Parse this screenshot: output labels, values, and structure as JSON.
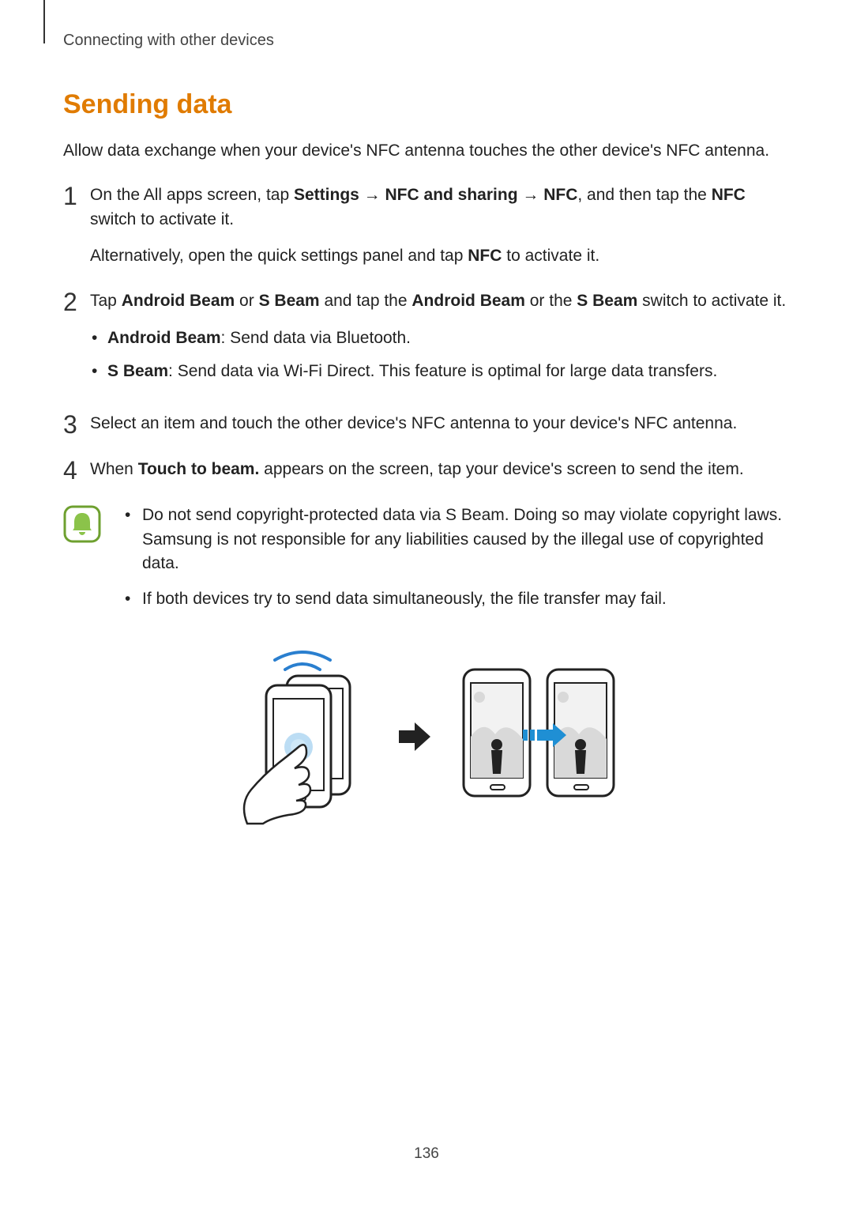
{
  "header": {
    "breadcrumb": "Connecting with other devices"
  },
  "section": {
    "title": "Sending data",
    "intro": "Allow data exchange when your device's NFC antenna touches the other device's NFC antenna."
  },
  "steps": [
    {
      "num": "1",
      "parts": [
        {
          "t": "On the All apps screen, tap "
        },
        {
          "t": "Settings",
          "b": true
        },
        {
          "t": " → "
        },
        {
          "t": "NFC and sharing",
          "b": true
        },
        {
          "t": " → "
        },
        {
          "t": "NFC",
          "b": true
        },
        {
          "t": ", and then tap the "
        },
        {
          "t": "NFC",
          "b": true
        },
        {
          "t": " switch to activate it."
        }
      ],
      "extra": [
        {
          "t": "Alternatively, open the quick settings panel and tap "
        },
        {
          "t": "NFC",
          "b": true
        },
        {
          "t": " to activate it."
        }
      ]
    },
    {
      "num": "2",
      "parts": [
        {
          "t": "Tap "
        },
        {
          "t": "Android Beam",
          "b": true
        },
        {
          "t": " or "
        },
        {
          "t": "S Beam",
          "b": true
        },
        {
          "t": " and tap the "
        },
        {
          "t": "Android Beam",
          "b": true
        },
        {
          "t": " or the "
        },
        {
          "t": "S Beam",
          "b": true
        },
        {
          "t": " switch to activate it."
        }
      ],
      "bullets": [
        [
          {
            "t": "Android Beam",
            "b": true
          },
          {
            "t": ": Send data via Bluetooth."
          }
        ],
        [
          {
            "t": "S Beam",
            "b": true
          },
          {
            "t": ": Send data via Wi-Fi Direct. This feature is optimal for large data transfers."
          }
        ]
      ]
    },
    {
      "num": "3",
      "parts": [
        {
          "t": "Select an item and touch the other device's NFC antenna to your device's NFC antenna."
        }
      ]
    },
    {
      "num": "4",
      "parts": [
        {
          "t": "When "
        },
        {
          "t": "Touch to beam.",
          "b": true
        },
        {
          "t": " appears on the screen, tap your device's screen to send the item."
        }
      ]
    }
  ],
  "notes": [
    "Do not send copyright-protected data via S Beam. Doing so may violate copyright laws. Samsung is not responsible for any liabilities caused by the illegal use of copyrighted data.",
    "If both devices try to send data simultaneously, the file transfer may fail."
  ],
  "colors": {
    "title": "#e07b00",
    "note_icon_green": "#8bc34a",
    "note_icon_stroke": "#6ea02f",
    "nfc_wave": "#2a7fcf",
    "touch_glow": "#9fcff0",
    "transfer_arrow": "#1f8fd4"
  },
  "page_number": "136"
}
